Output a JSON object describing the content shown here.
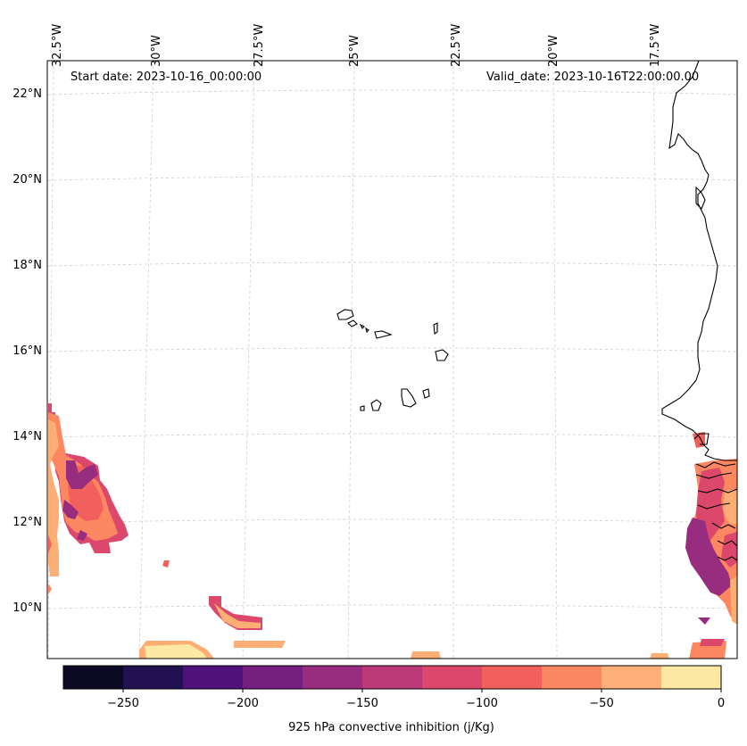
{
  "annotations": {
    "start_date": "Start date: 2023-10-16_00:00:00",
    "valid_date": "Valid_date: 2023-10-16T22:00:00.00"
  },
  "lon_labels": [
    "32.5°W",
    "30°W",
    "27.5°W",
    "25°W",
    "22.5°W",
    "20°W",
    "17.5°W"
  ],
  "lat_labels": [
    "22°N",
    "20°N",
    "18°N",
    "16°N",
    "14°N",
    "12°N",
    "10°N"
  ],
  "colorbar": {
    "label": "925 hPa convective inhibition (j/Kg)",
    "ticks": [
      "−250",
      "−200",
      "−150",
      "−100",
      "−50",
      "0"
    ],
    "colors": [
      "#0b0924",
      "#221150",
      "#4f127b",
      "#751f81",
      "#982d80",
      "#bc3978",
      "#dc486c",
      "#f1605d",
      "#fc8761",
      "#feb078",
      "#fde9a3"
    ]
  }
}
